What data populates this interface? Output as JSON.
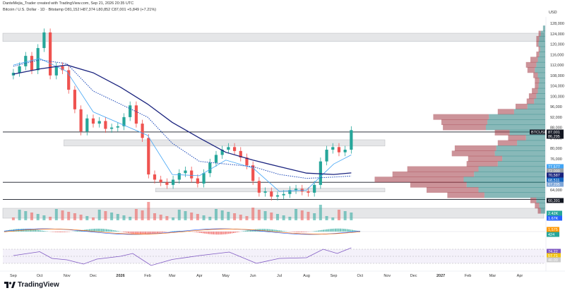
{
  "header": {
    "line1": "DanteMejia_Trader created with TradingView.com, Sep 21, 2026 20:35 UTC",
    "line2": "Bitcoin / U.S. Dollar · 1D · Bitstamp  O81,152  H87,374  L80,852  C87,001  +5,849 (+7.21%)"
  },
  "currency": "USD",
  "brand": "TradingView",
  "colors": {
    "up": "#26a69a",
    "down": "#ef5350",
    "sma_dark": "#1a237e",
    "sma_light": "#42a5f5",
    "vp_up": "#26807f",
    "vp_down": "#a33a45",
    "rsi": "#7e57c2"
  },
  "chart_data": {
    "type": "candlestick",
    "symbol": "BTCUSD",
    "timeframe": "1D",
    "exchange": "Bitstamp",
    "ohlc_last": {
      "open": 81152,
      "high": 87374,
      "low": 80852,
      "close": 87001,
      "change": 5849,
      "change_pct": 7.21
    },
    "y_ticks": [
      128000,
      124000,
      120000,
      116000,
      112000,
      108000,
      104000,
      100000,
      96000,
      92000,
      88000,
      84000,
      80000,
      76000,
      72000,
      68000,
      64000,
      60000
    ],
    "x_ticks": [
      "Sep",
      "Oct",
      "Nov",
      "Dec",
      "2026",
      "Feb",
      "Mar",
      "Apr",
      "May",
      "Jun",
      "Jul",
      "Aug",
      "Sep",
      "Oct",
      "Nov",
      "Dec",
      "2027",
      "Feb",
      "Mar",
      "Apr"
    ],
    "close_series": [
      {
        "t": "2025-09-01",
        "c": 109000
      },
      {
        "t": "2025-09-08",
        "c": 111500
      },
      {
        "t": "2025-09-15",
        "c": 115500
      },
      {
        "t": "2025-09-22",
        "c": 110000
      },
      {
        "t": "2025-09-29",
        "c": 118500
      },
      {
        "t": "2025-10-06",
        "c": 124500
      },
      {
        "t": "2025-10-13",
        "c": 108000
      },
      {
        "t": "2025-10-20",
        "c": 111500
      },
      {
        "t": "2025-10-27",
        "c": 110000
      },
      {
        "t": "2025-11-03",
        "c": 102500
      },
      {
        "t": "2025-11-10",
        "c": 95000
      },
      {
        "t": "2025-11-17",
        "c": 86500
      },
      {
        "t": "2025-11-24",
        "c": 91500
      },
      {
        "t": "2025-12-01",
        "c": 89500
      },
      {
        "t": "2025-12-08",
        "c": 90500
      },
      {
        "t": "2025-12-15",
        "c": 87500
      },
      {
        "t": "2025-12-22",
        "c": 88000
      },
      {
        "t": "2025-12-29",
        "c": 88500
      },
      {
        "t": "2026-01-05",
        "c": 92000
      },
      {
        "t": "2026-01-12",
        "c": 96500
      },
      {
        "t": "2026-01-19",
        "c": 89500
      },
      {
        "t": "2026-01-26",
        "c": 84000
      },
      {
        "t": "2026-02-02",
        "c": 70000
      },
      {
        "t": "2026-02-09",
        "c": 68000
      },
      {
        "t": "2026-02-16",
        "c": 67000
      },
      {
        "t": "2026-02-23",
        "c": 66000
      },
      {
        "t": "2026-03-02",
        "c": 68000
      },
      {
        "t": "2026-03-09",
        "c": 70500
      },
      {
        "t": "2026-03-16",
        "c": 71500
      },
      {
        "t": "2026-03-23",
        "c": 68500
      },
      {
        "t": "2026-03-30",
        "c": 66500
      },
      {
        "t": "2026-04-06",
        "c": 70500
      },
      {
        "t": "2026-04-13",
        "c": 74500
      },
      {
        "t": "2026-04-20",
        "c": 77500
      },
      {
        "t": "2026-04-27",
        "c": 79500
      },
      {
        "t": "2026-05-04",
        "c": 80500
      },
      {
        "t": "2026-05-11",
        "c": 79000
      },
      {
        "t": "2026-05-18",
        "c": 76500
      },
      {
        "t": "2026-05-25",
        "c": 73500
      },
      {
        "t": "2026-06-01",
        "c": 67500
      },
      {
        "t": "2026-06-08",
        "c": 63000
      },
      {
        "t": "2026-06-15",
        "c": 63500
      },
      {
        "t": "2026-06-22",
        "c": 61500
      },
      {
        "t": "2026-06-29",
        "c": 62000
      },
      {
        "t": "2026-07-06",
        "c": 62500
      },
      {
        "t": "2026-07-13",
        "c": 64000
      },
      {
        "t": "2026-07-20",
        "c": 64500
      },
      {
        "t": "2026-07-27",
        "c": 63500
      },
      {
        "t": "2026-08-03",
        "c": 63000
      },
      {
        "t": "2026-08-10",
        "c": 66000
      },
      {
        "t": "2026-08-17",
        "c": 75000
      },
      {
        "t": "2026-08-24",
        "c": 79500
      },
      {
        "t": "2026-08-31",
        "c": 80500
      },
      {
        "t": "2026-09-07",
        "c": 78500
      },
      {
        "t": "2026-09-14",
        "c": 79500
      },
      {
        "t": "2026-09-21",
        "c": 87001
      }
    ],
    "sma_dark": [
      {
        "t": "2025-09-01",
        "v": 108500
      },
      {
        "t": "2025-10-01",
        "v": 110500
      },
      {
        "t": "2025-11-01",
        "v": 112000
      },
      {
        "t": "2025-12-01",
        "v": 109000
      },
      {
        "t": "2026-01-01",
        "v": 103500
      },
      {
        "t": "2026-02-01",
        "v": 97000
      },
      {
        "t": "2026-03-01",
        "v": 90000
      },
      {
        "t": "2026-04-01",
        "v": 84000
      },
      {
        "t": "2026-05-01",
        "v": 78500
      },
      {
        "t": "2026-06-01",
        "v": 75500
      },
      {
        "t": "2026-07-01",
        "v": 73000
      },
      {
        "t": "2026-08-01",
        "v": 70500
      },
      {
        "t": "2026-09-01",
        "v": 70000
      },
      {
        "t": "2026-09-21",
        "v": 70600
      }
    ],
    "ema_dotted": [
      {
        "t": "2025-09-01",
        "v": 111500
      },
      {
        "t": "2025-10-01",
        "v": 114000
      },
      {
        "t": "2025-11-01",
        "v": 112500
      },
      {
        "t": "2025-12-01",
        "v": 102000
      },
      {
        "t": "2026-01-01",
        "v": 97000
      },
      {
        "t": "2026-02-01",
        "v": 92000
      },
      {
        "t": "2026-03-01",
        "v": 82000
      },
      {
        "t": "2026-04-01",
        "v": 75000
      },
      {
        "t": "2026-05-01",
        "v": 74000
      },
      {
        "t": "2026-06-01",
        "v": 73000
      },
      {
        "t": "2026-07-01",
        "v": 70000
      },
      {
        "t": "2026-08-01",
        "v": 68500
      },
      {
        "t": "2026-09-01",
        "v": 69000
      },
      {
        "t": "2026-09-21",
        "v": 69400
      }
    ],
    "sma_light": [
      {
        "t": "2025-09-01",
        "v": 112000
      },
      {
        "t": "2025-10-01",
        "v": 114500
      },
      {
        "t": "2025-11-01",
        "v": 109500
      },
      {
        "t": "2025-12-01",
        "v": 94000
      },
      {
        "t": "2026-01-01",
        "v": 89500
      },
      {
        "t": "2026-02-01",
        "v": 85000
      },
      {
        "t": "2026-03-01",
        "v": 70000
      },
      {
        "t": "2026-04-01",
        "v": 69500
      },
      {
        "t": "2026-05-01",
        "v": 75500
      },
      {
        "t": "2026-06-01",
        "v": 72500
      },
      {
        "t": "2026-07-01",
        "v": 63500
      },
      {
        "t": "2026-08-01",
        "v": 64000
      },
      {
        "t": "2026-09-01",
        "v": 74000
      },
      {
        "t": "2026-09-21",
        "v": 77500
      }
    ],
    "zones": [
      {
        "low": 121000,
        "high": 124200
      },
      {
        "low": 80900,
        "high": 83300
      },
      {
        "low": 63300,
        "high": 64700
      },
      {
        "low": 55500,
        "high": 58200
      }
    ],
    "lines": [
      {
        "value": 86295
      },
      {
        "value": 67000
      },
      {
        "value": 60391
      }
    ],
    "price_tags": [
      {
        "label": "BTCUSD",
        "value": "87,001",
        "color": "#131722"
      },
      {
        "label": "",
        "value": "86,295",
        "color": "#131722"
      },
      {
        "label": "",
        "value": "77,577",
        "color": "#42a5f5"
      },
      {
        "label": "",
        "value": "72,000",
        "color": "#9aa0a6"
      },
      {
        "label": "",
        "value": "70,587",
        "color": "#1a237e"
      },
      {
        "label": "",
        "value": "68,511",
        "color": "#1565c0"
      },
      {
        "label": "",
        "value": "67,295",
        "color": "#7fa6d8"
      },
      {
        "label": "",
        "value": "60,391",
        "color": "#131722"
      }
    ],
    "volume_profile": [
      {
        "p": 126000,
        "up": 3,
        "dn": 0
      },
      {
        "p": 124000,
        "up": 6,
        "dn": 3
      },
      {
        "p": 122000,
        "up": 8,
        "dn": 4
      },
      {
        "p": 120000,
        "up": 9,
        "dn": 3
      },
      {
        "p": 118000,
        "up": 7,
        "dn": 2
      },
      {
        "p": 116000,
        "up": 8,
        "dn": 4
      },
      {
        "p": 114000,
        "up": 10,
        "dn": 10
      },
      {
        "p": 112000,
        "up": 12,
        "dn": 14
      },
      {
        "p": 110000,
        "up": 14,
        "dn": 10
      },
      {
        "p": 108000,
        "up": 10,
        "dn": 6
      },
      {
        "p": 106000,
        "up": 8,
        "dn": 6
      },
      {
        "p": 104000,
        "up": 9,
        "dn": 5
      },
      {
        "p": 102000,
        "up": 10,
        "dn": 8
      },
      {
        "p": 100000,
        "up": 12,
        "dn": 10
      },
      {
        "p": 98000,
        "up": 15,
        "dn": 10
      },
      {
        "p": 96000,
        "up": 24,
        "dn": 16
      },
      {
        "p": 94000,
        "up": 42,
        "dn": 22
      },
      {
        "p": 92000,
        "up": 76,
        "dn": 75
      },
      {
        "p": 90000,
        "up": 78,
        "dn": 62
      },
      {
        "p": 88000,
        "up": 80,
        "dn": 58
      },
      {
        "p": 86000,
        "up": 48,
        "dn": 20
      },
      {
        "p": 84000,
        "up": 26,
        "dn": 24
      },
      {
        "p": 82000,
        "up": 38,
        "dn": 26
      },
      {
        "p": 80000,
        "up": 66,
        "dn": 56
      },
      {
        "p": 78000,
        "up": 68,
        "dn": 58
      },
      {
        "p": 76000,
        "up": 58,
        "dn": 46
      },
      {
        "p": 74000,
        "up": 64,
        "dn": 42
      },
      {
        "p": 72000,
        "up": 90,
        "dn": 96
      },
      {
        "p": 70000,
        "up": 96,
        "dn": 110
      },
      {
        "p": 68000,
        "up": 110,
        "dn": 120
      },
      {
        "p": 66000,
        "up": 106,
        "dn": 76
      },
      {
        "p": 64000,
        "up": 90,
        "dn": 70
      },
      {
        "p": 62000,
        "up": 82,
        "dn": 50
      },
      {
        "p": 60000,
        "up": 12,
        "dn": 8
      },
      {
        "p": 58000,
        "up": 8,
        "dn": 6
      },
      {
        "p": 56000,
        "up": 6,
        "dn": 4
      }
    ],
    "volume_tags": [
      {
        "value": "2.42K",
        "color": "#26a69a"
      },
      {
        "value": "1.67K",
        "color": "#2962ff"
      }
    ],
    "macd_tags": [
      {
        "value": "1,575",
        "color": "#ff9800"
      },
      {
        "value": "424",
        "color": "#26a69a"
      }
    ],
    "rsi": {
      "levels": [
        70,
        50,
        30
      ],
      "last_tags": [
        {
          "value": "74.22",
          "color": "#7e57c2"
        },
        {
          "value": "57.71",
          "color": "#f1c40f"
        },
        {
          "value": "40.00",
          "color": "#cccccc"
        }
      ],
      "series": [
        {
          "t": "2025-09-01",
          "v": 52
        },
        {
          "t": "2025-10-01",
          "v": 63
        },
        {
          "t": "2025-10-15",
          "v": 44
        },
        {
          "t": "2025-11-01",
          "v": 40
        },
        {
          "t": "2025-11-20",
          "v": 28
        },
        {
          "t": "2025-12-05",
          "v": 42
        },
        {
          "t": "2026-01-01",
          "v": 50
        },
        {
          "t": "2026-01-15",
          "v": 58
        },
        {
          "t": "2026-02-05",
          "v": 24
        },
        {
          "t": "2026-03-01",
          "v": 41
        },
        {
          "t": "2026-04-01",
          "v": 52
        },
        {
          "t": "2026-05-05",
          "v": 62
        },
        {
          "t": "2026-06-05",
          "v": 30
        },
        {
          "t": "2026-07-01",
          "v": 44
        },
        {
          "t": "2026-08-01",
          "v": 46
        },
        {
          "t": "2026-08-20",
          "v": 70
        },
        {
          "t": "2026-09-05",
          "v": 58
        },
        {
          "t": "2026-09-21",
          "v": 74
        }
      ]
    }
  }
}
